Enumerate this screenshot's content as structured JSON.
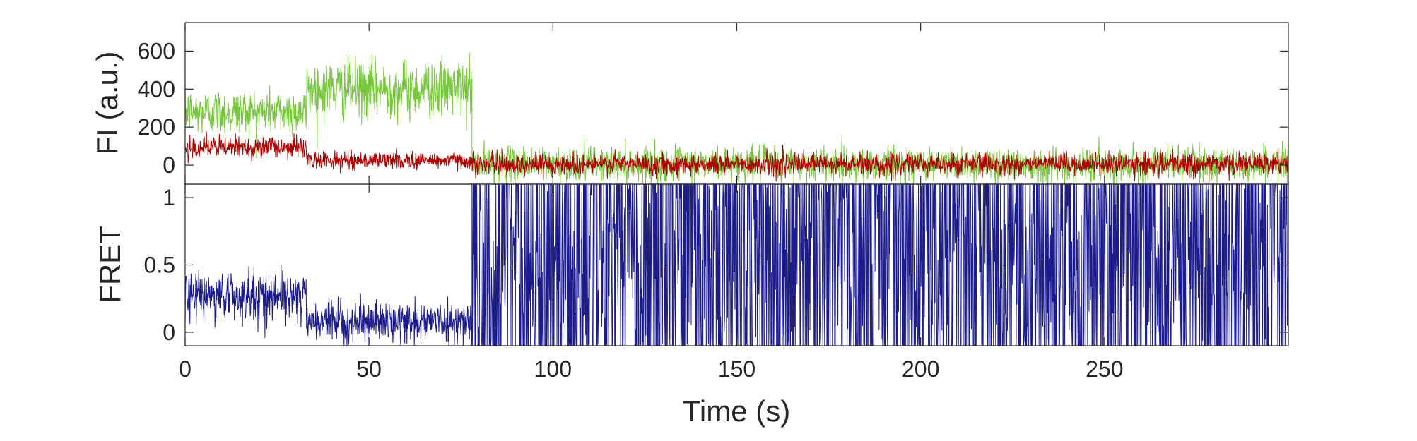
{
  "chart_data": [
    {
      "type": "line",
      "panel": "top",
      "title": "",
      "xlabel": "",
      "ylabel": "FI (a.u.)",
      "xlim": [
        0,
        300
      ],
      "ylim": [
        -100,
        750
      ],
      "yticks": [
        0,
        200,
        400,
        600
      ],
      "ytick_labels": [
        "0",
        "200",
        "400",
        "600"
      ],
      "grid": false,
      "legend": "none",
      "series": [
        {
          "color": "#77c83c",
          "sampling_interval_s": 0.1,
          "segments": [
            {
              "start": 0,
              "end": 33,
              "mean": 280,
              "noise_sd": 60
            },
            {
              "start": 33,
              "end": 78,
              "mean": 400,
              "noise_sd": 75
            },
            {
              "start": 78,
              "end": 300,
              "mean": 5,
              "noise_sd": 45
            }
          ]
        },
        {
          "color": "#b00000",
          "sampling_interval_s": 0.1,
          "segments": [
            {
              "start": 0,
              "end": 33,
              "mean": 95,
              "noise_sd": 28
            },
            {
              "start": 33,
              "end": 78,
              "mean": 25,
              "noise_sd": 22
            },
            {
              "start": 78,
              "end": 300,
              "mean": 5,
              "noise_sd": 28
            }
          ]
        }
      ]
    },
    {
      "type": "line",
      "panel": "bottom",
      "title": "",
      "xlabel": "Time (s)",
      "ylabel": "FRET",
      "xlim": [
        0,
        300
      ],
      "ylim": [
        -0.1,
        1.1
      ],
      "yticks": [
        0,
        0.5,
        1
      ],
      "ytick_labels": [
        "0",
        "0.5",
        "1"
      ],
      "xticks": [
        0,
        50,
        100,
        150,
        200,
        250
      ],
      "xtick_labels": [
        "0",
        "50",
        "100",
        "150",
        "200",
        "250"
      ],
      "grid": false,
      "legend": "none",
      "series": [
        {
          "color": "#1c1c8c",
          "sampling_interval_s": 0.1,
          "segments": [
            {
              "start": 0,
              "end": 33,
              "mean": 0.27,
              "noise_sd": 0.09
            },
            {
              "start": 33,
              "end": 78,
              "mean": 0.08,
              "noise_sd": 0.07
            },
            {
              "start": 78,
              "end": 300,
              "mean": 0.5,
              "noise_sd": 0.9,
              "clipped_to": [
                -0.1,
                1.1
              ]
            }
          ]
        }
      ]
    }
  ]
}
